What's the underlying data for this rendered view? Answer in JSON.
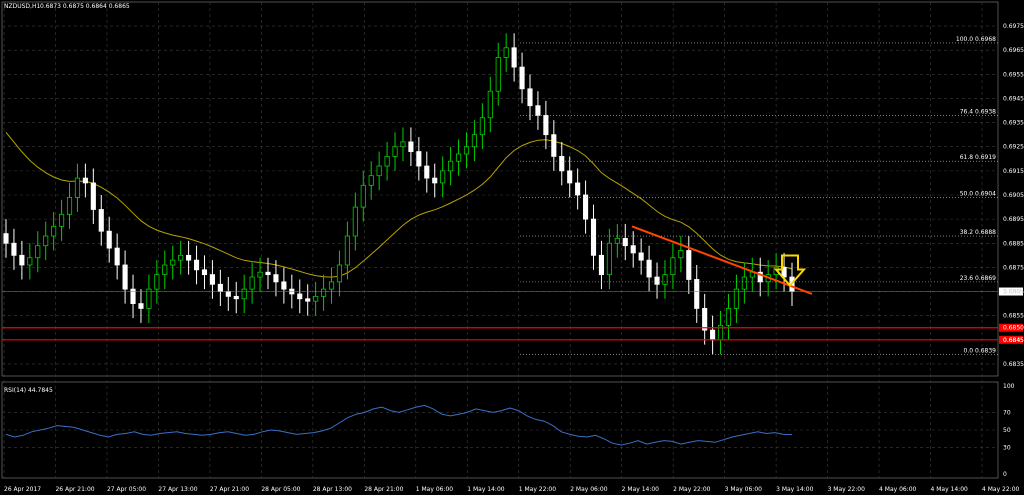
{
  "header": {
    "symbol_text": "NZDUSD,H1",
    "ohlc_text": "0.6873 0.6875 0.6864 0.6865",
    "rsi_text": "RSI(14) 44.7845"
  },
  "colors": {
    "background": "#000000",
    "grid": "#3c3c3c",
    "bull_candle": "#00d000",
    "bear_candle": "#ffffff",
    "moving_average": "#b6a300",
    "trendline": "#ff4500",
    "support": "#ff0000",
    "fibo": "#c8c8c8",
    "rsi_line": "#3b70c8",
    "arrow": "#ffd700"
  },
  "chart_data": [
    {
      "type": "candlestick",
      "title": "NZDUSD,H1",
      "ylim": [
        0.683,
        0.698
      ],
      "y_ticks": [
        "0.6975",
        "0.6965",
        "0.6955",
        "0.6945",
        "0.6935",
        "0.6925",
        "0.6915",
        "0.6905",
        "0.6895",
        "0.6885",
        "0.6875",
        "0.6865",
        "0.6855",
        "0.6845",
        "0.6835"
      ],
      "x_tick_labels": [
        "26 Apr 2017",
        "26 Apr 21:00",
        "27 Apr 05:00",
        "27 Apr 13:00",
        "27 Apr 21:00",
        "28 Apr 05:00",
        "28 Apr 13:00",
        "28 Apr 21:00",
        "1 May 06:00",
        "1 May 14:00",
        "1 May 22:00",
        "2 May 06:00",
        "2 May 14:00",
        "2 May 22:00",
        "3 May 06:00",
        "3 May 14:00",
        "3 May 22:00",
        "4 May 06:00",
        "4 May 14:00",
        "4 May 22:00"
      ],
      "candles_close": [
        0.6885,
        0.688,
        0.6876,
        0.6879,
        0.6884,
        0.6888,
        0.6892,
        0.6897,
        0.6904,
        0.6912,
        0.691,
        0.6899,
        0.689,
        0.6883,
        0.6876,
        0.6866,
        0.686,
        0.6858,
        0.6866,
        0.6872,
        0.6876,
        0.6878,
        0.688,
        0.6878,
        0.6874,
        0.6872,
        0.6868,
        0.6865,
        0.6863,
        0.6862,
        0.6866,
        0.6871,
        0.6873,
        0.6872,
        0.6869,
        0.6866,
        0.6864,
        0.6862,
        0.6861,
        0.6863,
        0.6866,
        0.6869,
        0.6876,
        0.6888,
        0.69,
        0.6909,
        0.6913,
        0.6917,
        0.6921,
        0.6925,
        0.6927,
        0.6923,
        0.6917,
        0.6912,
        0.691,
        0.6915,
        0.6919,
        0.6922,
        0.6925,
        0.693,
        0.6937,
        0.6948,
        0.6962,
        0.6966,
        0.6958,
        0.6949,
        0.6942,
        0.6938,
        0.693,
        0.6921,
        0.6915,
        0.691,
        0.6905,
        0.6895,
        0.688,
        0.6872,
        0.6885,
        0.6887,
        0.6884,
        0.6881,
        0.6878,
        0.6871,
        0.6868,
        0.6872,
        0.6879,
        0.6882,
        0.687,
        0.6858,
        0.6849,
        0.6845,
        0.6851,
        0.6858,
        0.6866,
        0.6871,
        0.6873,
        0.6869,
        0.6872,
        0.6875,
        0.6871,
        0.6865
      ],
      "moving_average_start": 0.6935,
      "fibonacci": [
        {
          "label": "100.0",
          "price_text": "0.6968",
          "value": 0.6968
        },
        {
          "label": "76.4",
          "price_text": "0.6938",
          "value": 0.6938
        },
        {
          "label": "61.8",
          "price_text": "0.6919",
          "value": 0.6919
        },
        {
          "label": "50.0",
          "price_text": "0.6904",
          "value": 0.6904
        },
        {
          "label": "38.2",
          "price_text": "0.6888",
          "value": 0.6888
        },
        {
          "label": "23.6",
          "price_text": "0.6869",
          "value": 0.6869
        },
        {
          "label": "0.0",
          "price_text": "0.6839",
          "value": 0.6839
        }
      ],
      "support_levels": [
        {
          "price_text": "0.6850",
          "value": 0.685
        },
        {
          "price_text": "0.6845",
          "value": 0.6845
        }
      ],
      "current_price_text": "0.6865",
      "current_price": 0.6865,
      "trendline": {
        "start_price": 0.6892,
        "end_price": 0.6864
      }
    },
    {
      "type": "line",
      "title": "RSI(14) 44.7845",
      "ylim": [
        0,
        100
      ],
      "y_ticks": [
        "100",
        "70",
        "50",
        "30",
        "0"
      ],
      "values": [
        45,
        42,
        44,
        48,
        50,
        52,
        55,
        54,
        53,
        50,
        47,
        44,
        42,
        45,
        46,
        48,
        45,
        44,
        46,
        47,
        48,
        46,
        45,
        44,
        45,
        47,
        48,
        46,
        44,
        45,
        48,
        50,
        49,
        47,
        45,
        46,
        47,
        49,
        52,
        58,
        64,
        68,
        70,
        74,
        76,
        72,
        70,
        73,
        76,
        78,
        74,
        68,
        66,
        68,
        70,
        74,
        72,
        70,
        72,
        75,
        72,
        66,
        62,
        60,
        55,
        48,
        45,
        43,
        42,
        44,
        40,
        35,
        33,
        35,
        38,
        34,
        36,
        38,
        37,
        34,
        36,
        38,
        37,
        36,
        39,
        42,
        44,
        46,
        48,
        46,
        47,
        45,
        44.78
      ]
    }
  ]
}
